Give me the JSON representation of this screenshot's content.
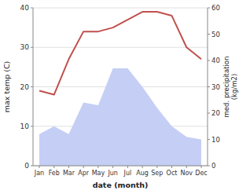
{
  "chart_data": {
    "type": "line",
    "xlabel": "date (month)",
    "ylabel": "max temp (C)",
    "y2label": "med. precipitation\n(kg/m2)",
    "categories": [
      "Jan",
      "Feb",
      "Mar",
      "Apr",
      "May",
      "Jun",
      "Jul",
      "Aug",
      "Sep",
      "Oct",
      "Nov",
      "Dec"
    ],
    "series": [
      {
        "type": "area",
        "axis": "y2",
        "color": "#c5cef5",
        "values": [
          12,
          15,
          12,
          24,
          23,
          37,
          37,
          30,
          22,
          15,
          11,
          10
        ]
      },
      {
        "type": "line",
        "color": "#c0504d",
        "values": [
          19,
          18,
          27,
          34,
          34,
          35,
          37,
          39,
          39,
          38,
          30,
          27
        ]
      }
    ],
    "ylim": [
      0,
      40
    ],
    "yticks": [
      0,
      10,
      20,
      30,
      40
    ],
    "y2lim": [
      0,
      60
    ],
    "y2ticks": [
      0,
      10,
      20,
      30,
      40,
      50,
      60
    ],
    "grid": true
  }
}
